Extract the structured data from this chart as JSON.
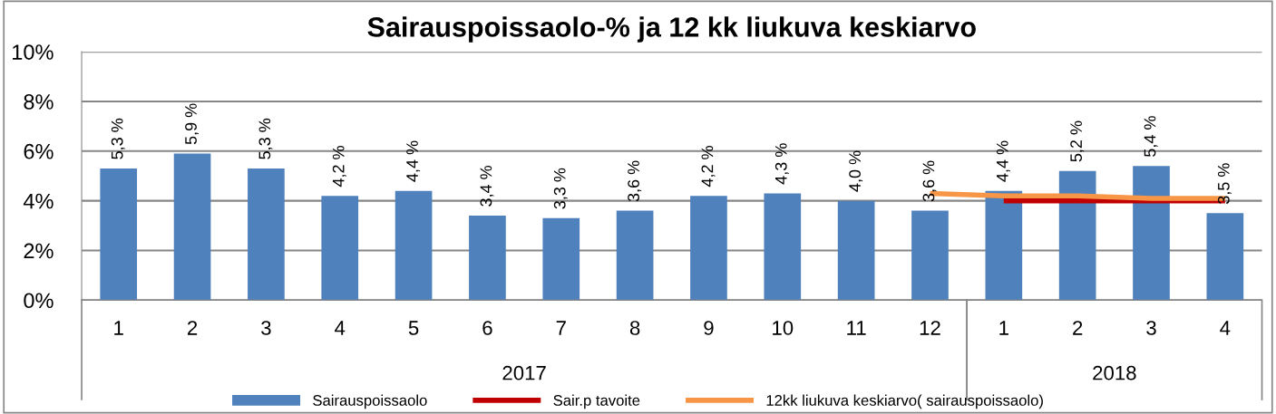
{
  "chart_data": {
    "type": "bar",
    "title": "Sairauspoissaolo-% ja 12 kk liukuva keskiarvo",
    "categories": [
      "1",
      "2",
      "3",
      "4",
      "5",
      "6",
      "7",
      "8",
      "9",
      "10",
      "11",
      "12",
      "1",
      "2",
      "3",
      "4"
    ],
    "series": [
      {
        "name": "Sairauspoissaolo",
        "color": "#4f81bd",
        "values": [
          5.3,
          5.9,
          5.3,
          4.2,
          4.4,
          3.4,
          3.3,
          3.6,
          4.2,
          4.3,
          4.0,
          3.6,
          4.4,
          5.2,
          5.4,
          3.5
        ],
        "value_labels": [
          "5,3 %",
          "5,9 %",
          "5,3 %",
          "4,2 %",
          "4,4 %",
          "3,4 %",
          "3,3 %",
          "3,6 %",
          "4,2 %",
          "4,3 %",
          "4,0 %",
          "3,6 %",
          "4,4 %",
          "5,2 %",
          "5,4 %",
          "3,5 %"
        ]
      },
      {
        "name": "Sair.p tavoite",
        "type": "line",
        "color": "#c00000",
        "values": [
          null,
          null,
          null,
          null,
          null,
          null,
          null,
          null,
          null,
          null,
          null,
          null,
          4.0,
          4.0,
          4.0,
          4.0
        ]
      },
      {
        "name": "12kk liukuva keskiarvo( sairauspoissaolo)",
        "type": "line",
        "color": "#f79646",
        "values": [
          null,
          null,
          null,
          null,
          null,
          null,
          null,
          null,
          null,
          null,
          null,
          4.3,
          4.2,
          4.2,
          4.1,
          4.1
        ]
      }
    ],
    "annotations": [
      "2017",
      "2018"
    ],
    "ylim": [
      0,
      10
    ],
    "yticks": [
      {
        "value": 0,
        "label": "0%"
      },
      {
        "value": 2,
        "label": "2%"
      },
      {
        "value": 4,
        "label": "4%"
      },
      {
        "value": 6,
        "label": "6%"
      },
      {
        "value": 8,
        "label": "8%"
      },
      {
        "value": 10,
        "label": "10%"
      }
    ],
    "grid": "y",
    "legend": "bottom"
  }
}
